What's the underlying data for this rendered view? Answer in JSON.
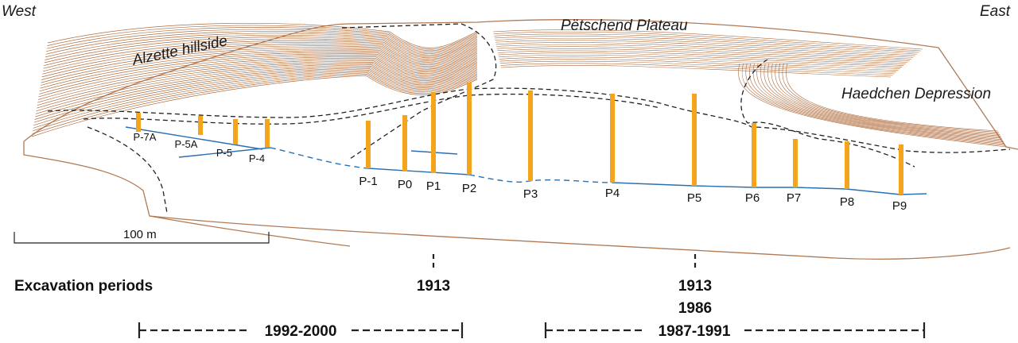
{
  "labels": {
    "west": "West",
    "east": "East",
    "alzette": "Alzette hillside",
    "plateau": "Pëtschend Plateau",
    "haedchen": "Haedchen Depression"
  },
  "scale_bar": {
    "text": "100 m"
  },
  "excavation": {
    "title": "Excavation periods",
    "marker_a": "1913",
    "marker_b_1": "1913",
    "marker_b_2": "1986",
    "range_a": "1992-2000",
    "range_b": "1987-1991"
  },
  "shafts_left": [
    "P-7A",
    "P-5A",
    "P-5",
    "P-4"
  ],
  "shafts_main": [
    "P-1",
    "P0",
    "P1",
    "P2",
    "P3",
    "P4",
    "P5",
    "P6",
    "P7",
    "P8",
    "P9"
  ],
  "colors": {
    "contour": "#b06a3a",
    "block": "#b07a55",
    "shaft": "#f4a51c",
    "gallery": "#2b6fb3",
    "road": "#222222"
  }
}
